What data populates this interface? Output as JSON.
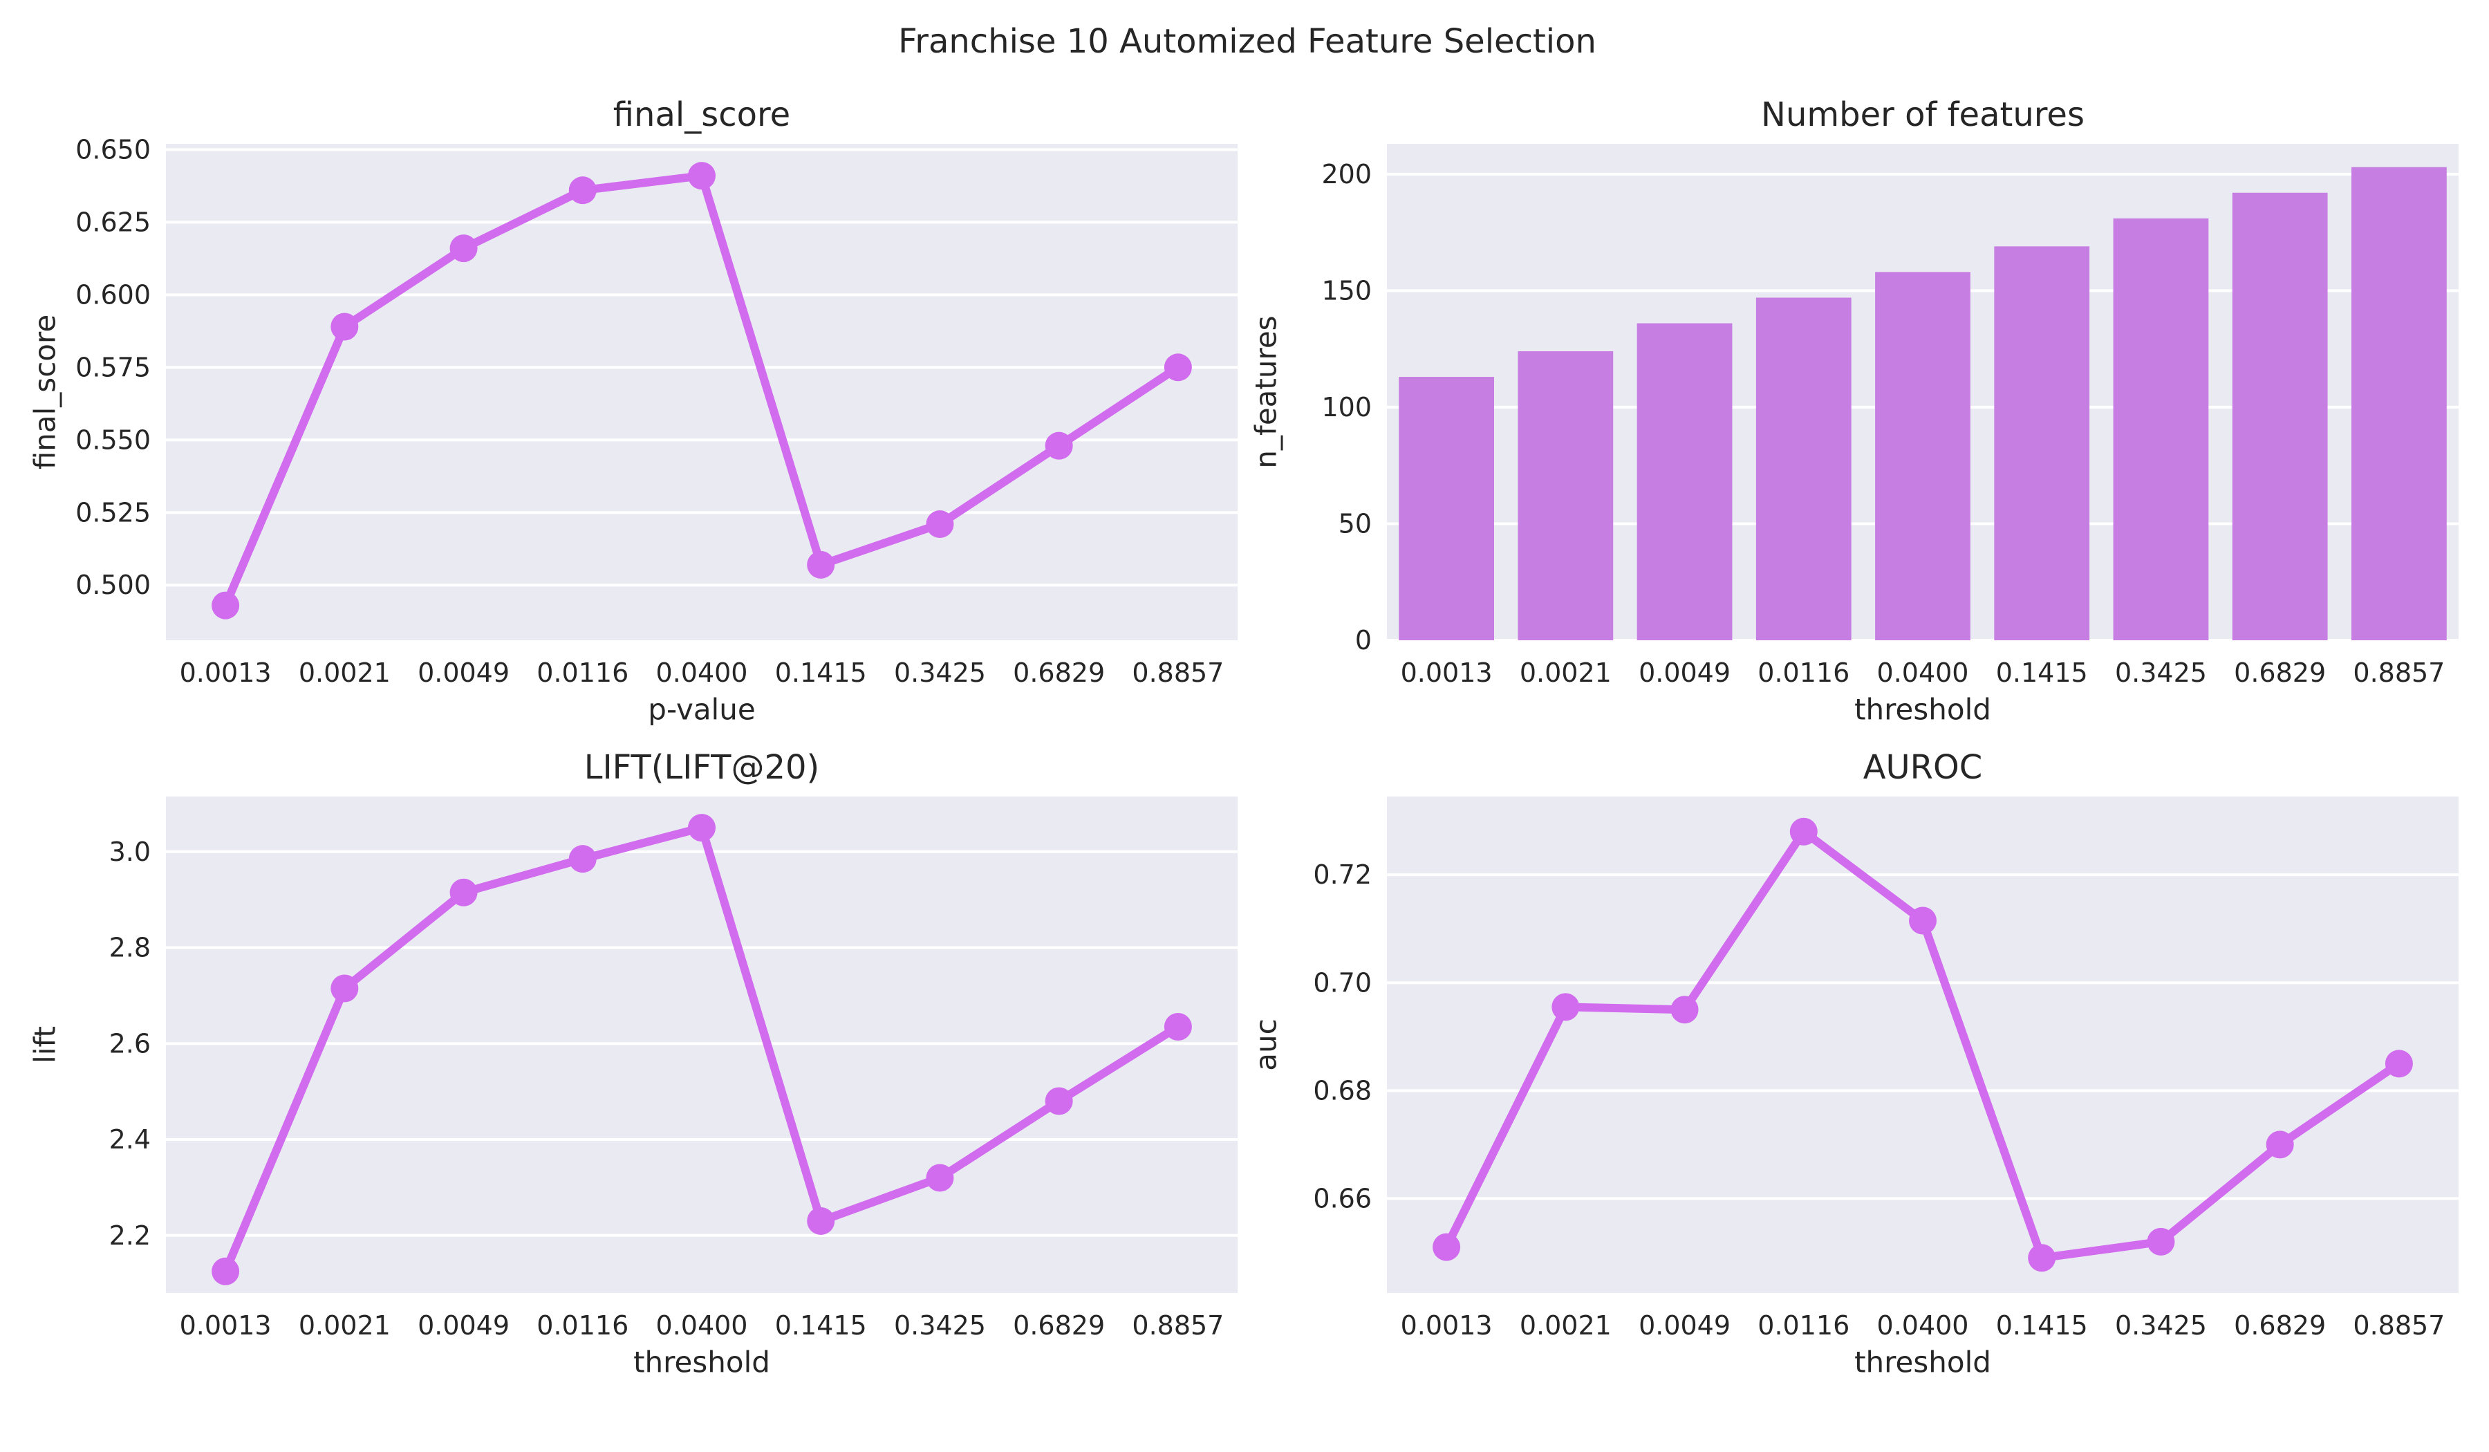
{
  "figure": {
    "title": "Franchise 10 Automized Feature Selection",
    "colors": {
      "background": "#eaeaf2",
      "grid": "#ffffff",
      "line": "#d06ced",
      "bar": "#c77ee2",
      "text": "#262626"
    }
  },
  "chart_data": [
    {
      "type": "line",
      "title": "final_score",
      "xlabel": "p-value",
      "ylabel": "final_score",
      "categories": [
        "0.0013",
        "0.0021",
        "0.0049",
        "0.0116",
        "0.0400",
        "0.1415",
        "0.3425",
        "0.6829",
        "0.8857"
      ],
      "values": [
        0.493,
        0.589,
        0.616,
        0.636,
        0.641,
        0.507,
        0.521,
        0.548,
        0.575
      ],
      "ylim": [
        0.481,
        0.652
      ],
      "yticks": [
        0.5,
        0.525,
        0.55,
        0.575,
        0.6,
        0.625,
        0.65
      ],
      "ytick_labels": [
        "0.500",
        "0.525",
        "0.550",
        "0.575",
        "0.600",
        "0.625",
        "0.650"
      ],
      "grid": true
    },
    {
      "type": "bar",
      "title": "Number of features",
      "xlabel": "threshold",
      "ylabel": "n_features",
      "categories": [
        "0.0013",
        "0.0021",
        "0.0049",
        "0.0116",
        "0.0400",
        "0.1415",
        "0.3425",
        "0.6829",
        "0.8857"
      ],
      "values": [
        113,
        124,
        136,
        147,
        158,
        169,
        181,
        192,
        203
      ],
      "ylim": [
        0,
        213
      ],
      "yticks": [
        0,
        50,
        100,
        150,
        200
      ],
      "ytick_labels": [
        "0",
        "50",
        "100",
        "150",
        "200"
      ],
      "grid": true
    },
    {
      "type": "line",
      "title": "LIFT(LIFT@20)",
      "xlabel": "threshold",
      "ylabel": "lift",
      "categories": [
        "0.0013",
        "0.0021",
        "0.0049",
        "0.0116",
        "0.0400",
        "0.1415",
        "0.3425",
        "0.6829",
        "0.8857"
      ],
      "values": [
        2.125,
        2.715,
        2.915,
        2.985,
        3.05,
        2.23,
        2.32,
        2.48,
        2.635
      ],
      "ylim": [
        2.08,
        3.115
      ],
      "yticks": [
        2.2,
        2.4,
        2.6,
        2.8,
        3.0
      ],
      "ytick_labels": [
        "2.2",
        "2.4",
        "2.6",
        "2.8",
        "3.0"
      ],
      "grid": true
    },
    {
      "type": "line",
      "title": "AUROC",
      "xlabel": "threshold",
      "ylabel": "auc",
      "categories": [
        "0.0013",
        "0.0021",
        "0.0049",
        "0.0116",
        "0.0400",
        "0.1415",
        "0.3425",
        "0.6829",
        "0.8857"
      ],
      "values": [
        0.651,
        0.6955,
        0.695,
        0.728,
        0.7115,
        0.649,
        0.652,
        0.67,
        0.685
      ],
      "ylim": [
        0.6425,
        0.7345
      ],
      "yticks": [
        0.66,
        0.68,
        0.7,
        0.72
      ],
      "ytick_labels": [
        "0.66",
        "0.68",
        "0.70",
        "0.72"
      ],
      "grid": true
    }
  ]
}
